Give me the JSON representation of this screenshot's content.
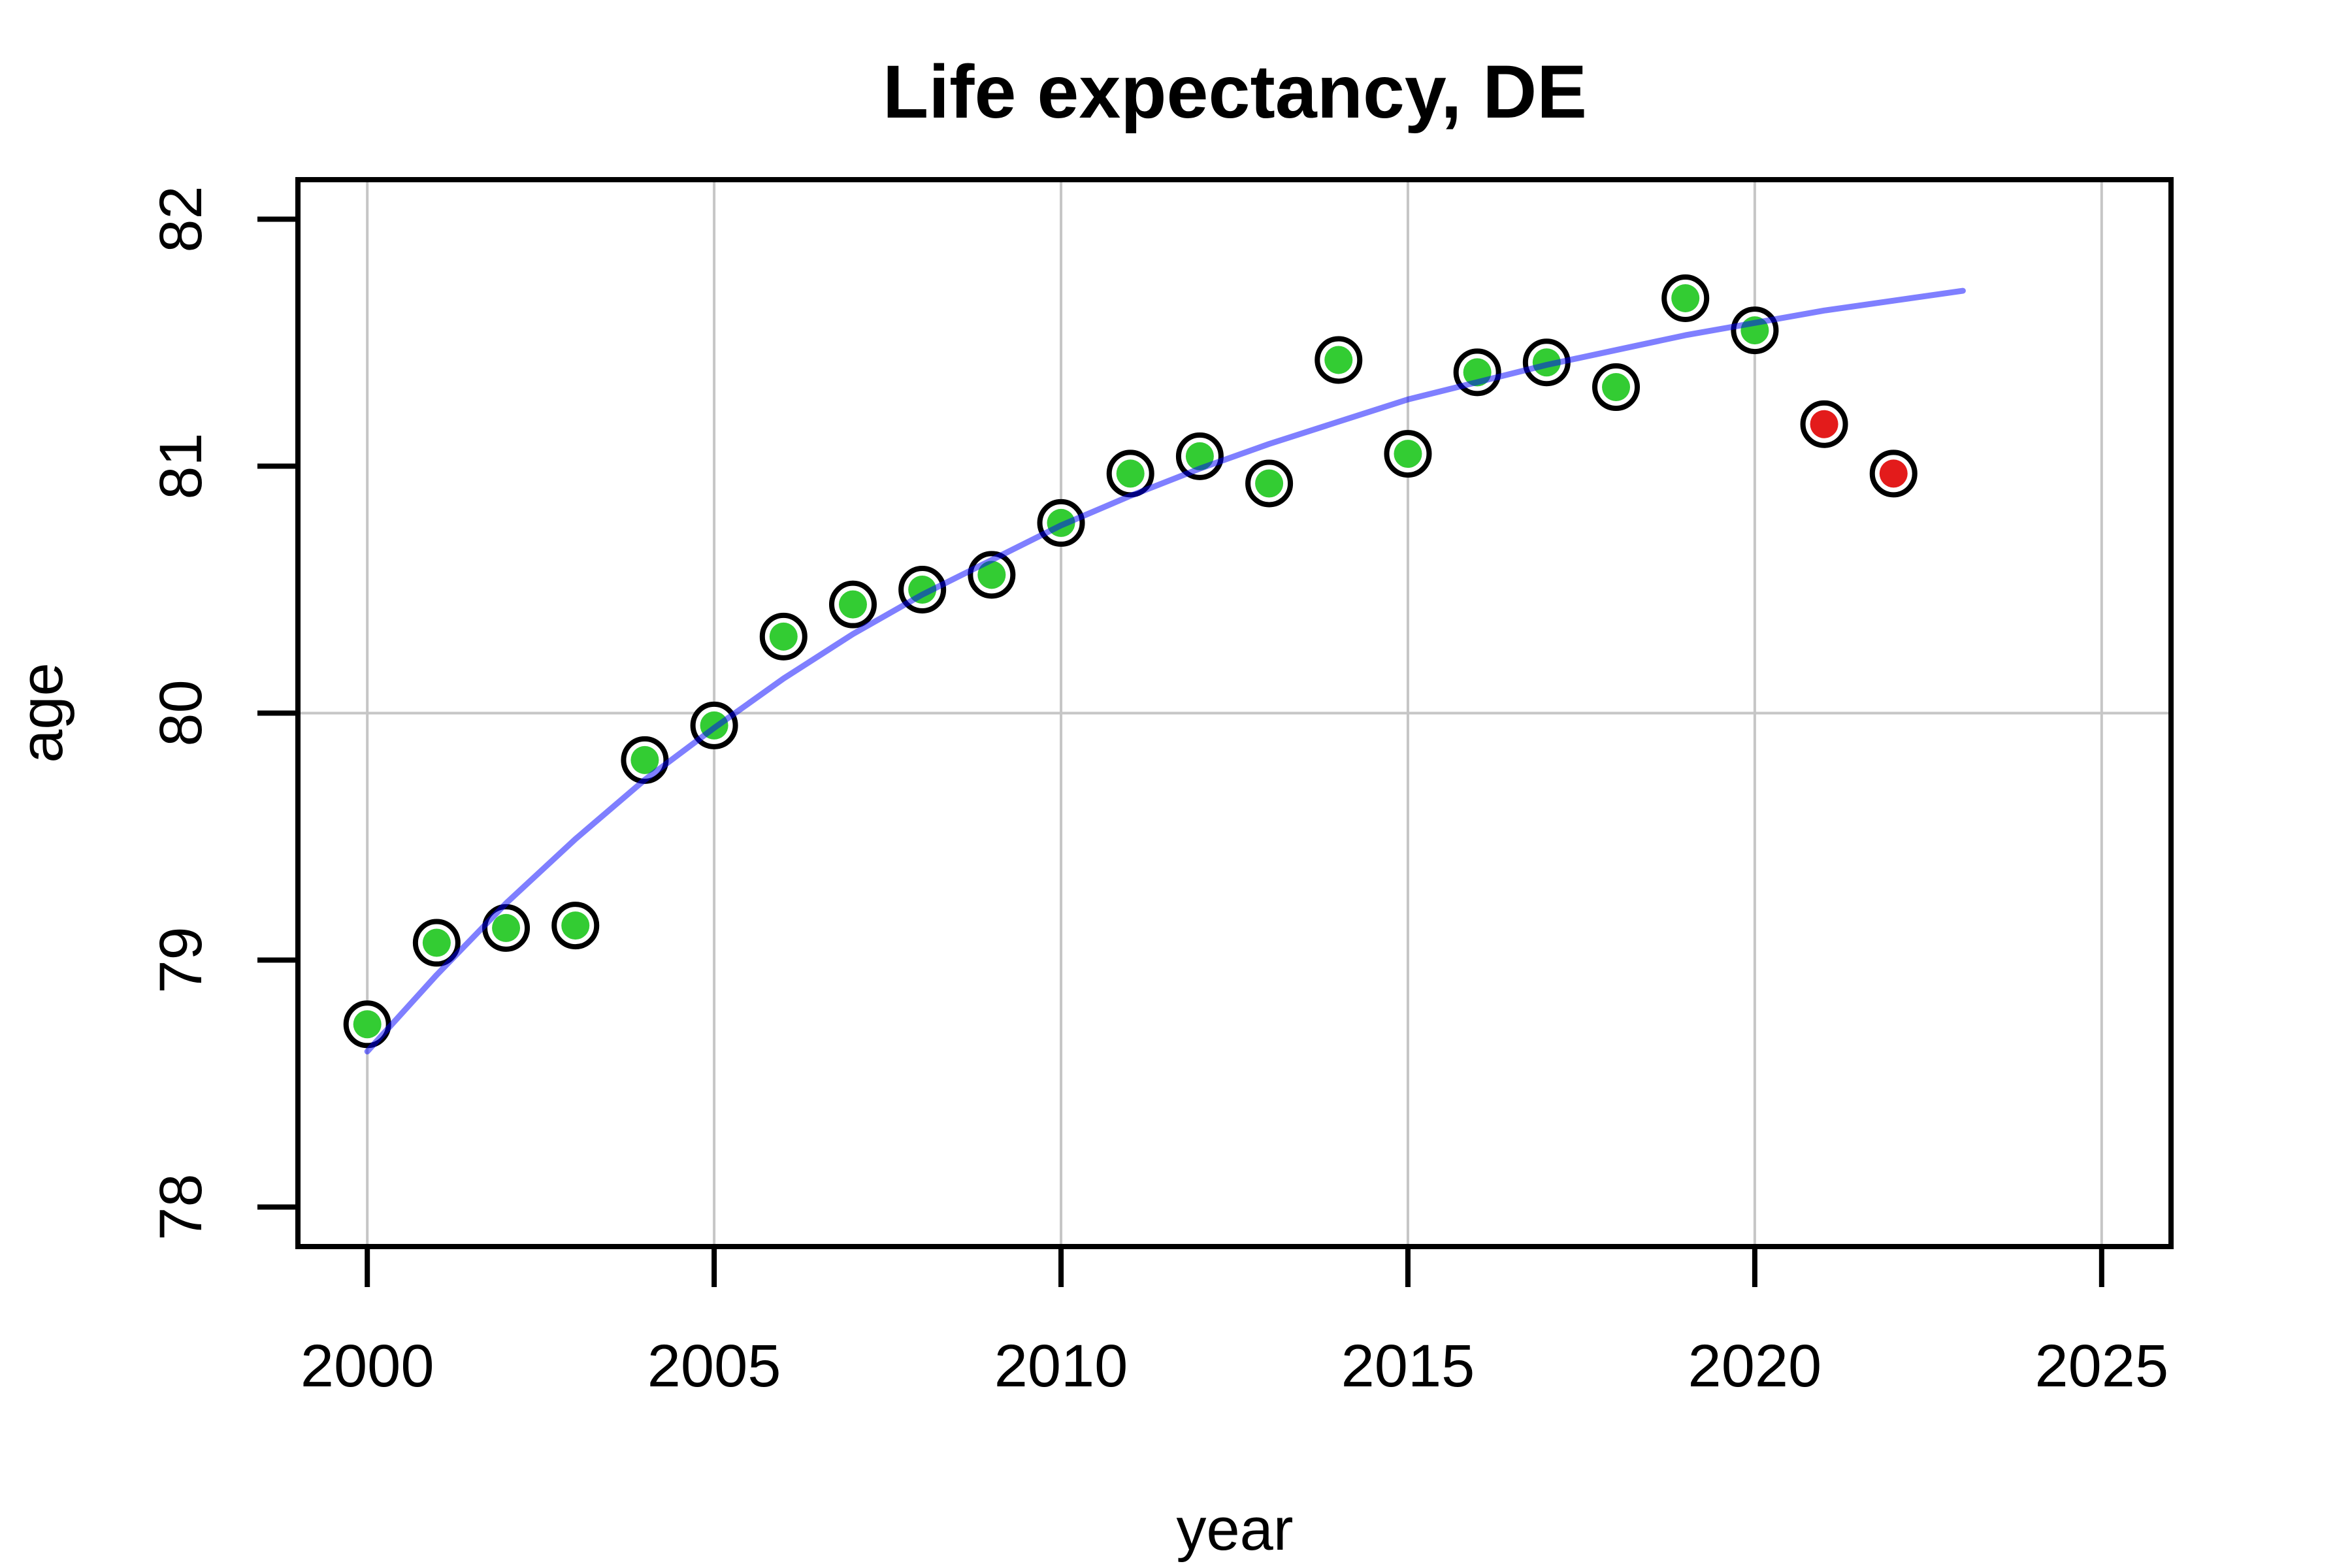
{
  "title": "Life expectancy, DE",
  "axes": {
    "x_label": "year",
    "y_label": "age"
  },
  "colors": {
    "observed_point": "#33CC33",
    "flagged_point": "#E31B1B",
    "marker_ring": "#000000",
    "trend_line": "#0000FF",
    "trend_opacity": 0.5,
    "grid_line": "#C6C6C6",
    "axis_line": "#000000",
    "background": "#FFFFFF"
  },
  "chart_data": {
    "type": "scatter",
    "title": "Life expectancy, DE",
    "xlabel": "year",
    "ylabel": "age",
    "xlim": [
      2000,
      2025
    ],
    "ylim": [
      78,
      82
    ],
    "x_ticks": [
      2000,
      2005,
      2010,
      2015,
      2020,
      2025
    ],
    "y_ticks": [
      78,
      79,
      80,
      81,
      82
    ],
    "grid": {
      "vertical_at": [
        2000,
        2005,
        2010,
        2015,
        2020,
        2025
      ],
      "horizontal_at": [
        80
      ]
    },
    "legend_position": "none",
    "series": [
      {
        "name": "observed",
        "type": "scatter",
        "marker": "filled-dot-with-black-ring",
        "points": [
          {
            "year": 2000,
            "age": 78.74,
            "color": "green"
          },
          {
            "year": 2001,
            "age": 79.07,
            "color": "green"
          },
          {
            "year": 2002,
            "age": 79.13,
            "color": "green"
          },
          {
            "year": 2003,
            "age": 79.14,
            "color": "green"
          },
          {
            "year": 2004,
            "age": 79.81,
            "color": "green"
          },
          {
            "year": 2005,
            "age": 79.95,
            "color": "green"
          },
          {
            "year": 2006,
            "age": 80.31,
            "color": "green"
          },
          {
            "year": 2007,
            "age": 80.44,
            "color": "green"
          },
          {
            "year": 2008,
            "age": 80.5,
            "color": "green"
          },
          {
            "year": 2009,
            "age": 80.56,
            "color": "green"
          },
          {
            "year": 2010,
            "age": 80.77,
            "color": "green"
          },
          {
            "year": 2011,
            "age": 80.97,
            "color": "green"
          },
          {
            "year": 2012,
            "age": 81.04,
            "color": "green"
          },
          {
            "year": 2013,
            "age": 80.93,
            "color": "green"
          },
          {
            "year": 2014,
            "age": 81.43,
            "color": "green"
          },
          {
            "year": 2015,
            "age": 81.05,
            "color": "green"
          },
          {
            "year": 2016,
            "age": 81.38,
            "color": "green"
          },
          {
            "year": 2017,
            "age": 81.42,
            "color": "green"
          },
          {
            "year": 2018,
            "age": 81.32,
            "color": "green"
          },
          {
            "year": 2019,
            "age": 81.68,
            "color": "green"
          },
          {
            "year": 2020,
            "age": 81.55,
            "color": "green"
          },
          {
            "year": 2021,
            "age": 81.17,
            "color": "red"
          },
          {
            "year": 2022,
            "age": 80.97,
            "color": "red"
          }
        ]
      },
      {
        "name": "trend",
        "type": "line",
        "x": [
          2000,
          2001,
          2002,
          2003,
          2004,
          2005,
          2006,
          2007,
          2008,
          2009,
          2010,
          2011,
          2012,
          2013,
          2014,
          2015,
          2016,
          2017,
          2018,
          2019,
          2020,
          2021,
          2022,
          2023
        ],
        "y": [
          78.63,
          78.94,
          79.23,
          79.49,
          79.73,
          79.94,
          80.14,
          80.32,
          80.48,
          80.62,
          80.76,
          80.88,
          80.99,
          81.09,
          81.18,
          81.27,
          81.34,
          81.41,
          81.47,
          81.53,
          81.58,
          81.63,
          81.67,
          81.71
        ]
      }
    ]
  }
}
